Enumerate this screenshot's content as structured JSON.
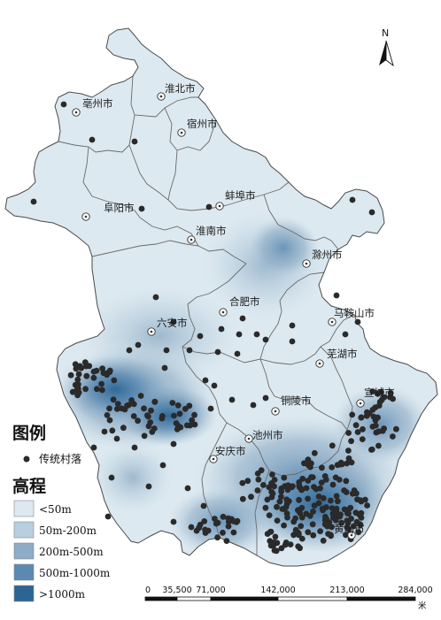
{
  "north_label": "N",
  "cities": [
    {
      "name": "亳州市"
    },
    {
      "name": "淮北市"
    },
    {
      "name": "宿州市"
    },
    {
      "name": "阜阳市"
    },
    {
      "name": "蚌埠市"
    },
    {
      "name": "淮南市"
    },
    {
      "name": "滁州市"
    },
    {
      "name": "合肥市"
    },
    {
      "name": "六安市"
    },
    {
      "name": "马鞍山市"
    },
    {
      "name": "芜湖市"
    },
    {
      "name": "宣城市"
    },
    {
      "name": "铜陵市"
    },
    {
      "name": "池州市"
    },
    {
      "name": "安庆市"
    },
    {
      "name": "黄山市"
    }
  ],
  "legend": {
    "title": "图例",
    "village_label": "传统村落",
    "elevation_title": "高程",
    "classes": [
      {
        "label": "<50m",
        "color": "#dde9f0"
      },
      {
        "label": "50m-200m",
        "color": "#b7cfdf"
      },
      {
        "label": "200m-500m",
        "color": "#8eacc5"
      },
      {
        "label": "500m-1000m",
        "color": "#5b89b1"
      },
      {
        "label": ">1000m",
        "color": "#2c6593"
      }
    ]
  },
  "scale": {
    "ticks": [
      "0",
      "35,500",
      "71,000",
      "142,000",
      "213,000",
      "284,000"
    ],
    "unit": "米"
  },
  "colors": {
    "village_dot": "#2a2a2a",
    "boundary": "#6a6a6a",
    "province_edge": "#4a4a4a"
  }
}
